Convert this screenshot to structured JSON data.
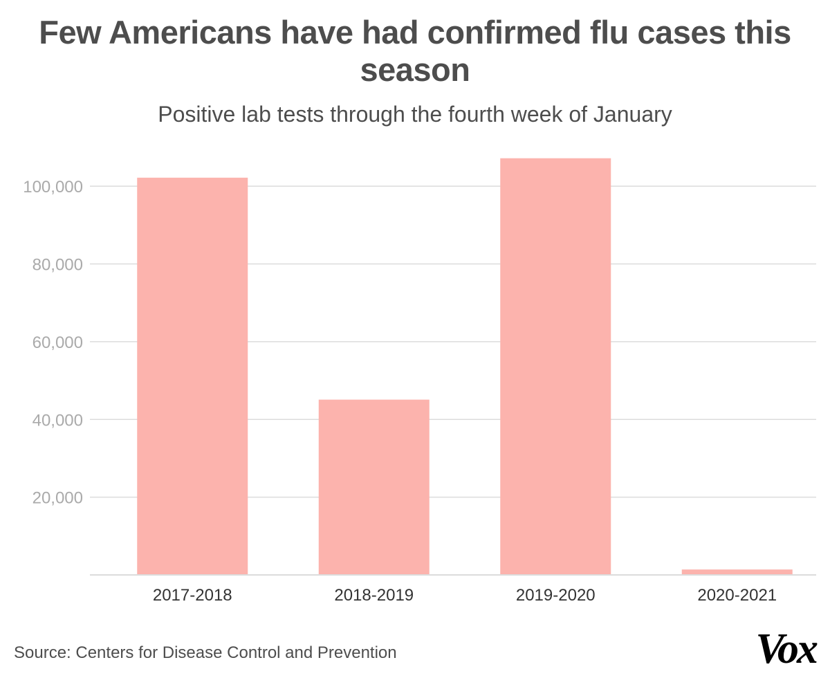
{
  "header": {
    "title": "Few Americans have had confirmed flu cases this season",
    "subtitle": "Positive lab tests through the fourth week of January"
  },
  "footer": {
    "source": "Source: Centers for Disease Control and Prevention",
    "logo": "Vox"
  },
  "colors": {
    "bar": "#fcb3ad",
    "grid": "#dcdcdc",
    "tick_label": "#aaaaaa",
    "category_label": "#333333",
    "text": "#4d4d4d"
  },
  "chart_data": {
    "type": "bar",
    "title": "Few Americans have had confirmed flu cases this season",
    "subtitle": "Positive lab tests through the fourth week of January",
    "xlabel": "",
    "ylabel": "",
    "categories": [
      "2017-2018",
      "2018-2019",
      "2019-2020",
      "2020-2021"
    ],
    "values": [
      102200,
      45100,
      107200,
      1400
    ],
    "ylim": [
      0,
      110000
    ],
    "yticks": [
      20000,
      40000,
      60000,
      80000,
      100000
    ],
    "ytick_labels": [
      "20,000",
      "40,000",
      "60,000",
      "80,000",
      "100,000"
    ],
    "grid": true,
    "legend": "none"
  }
}
